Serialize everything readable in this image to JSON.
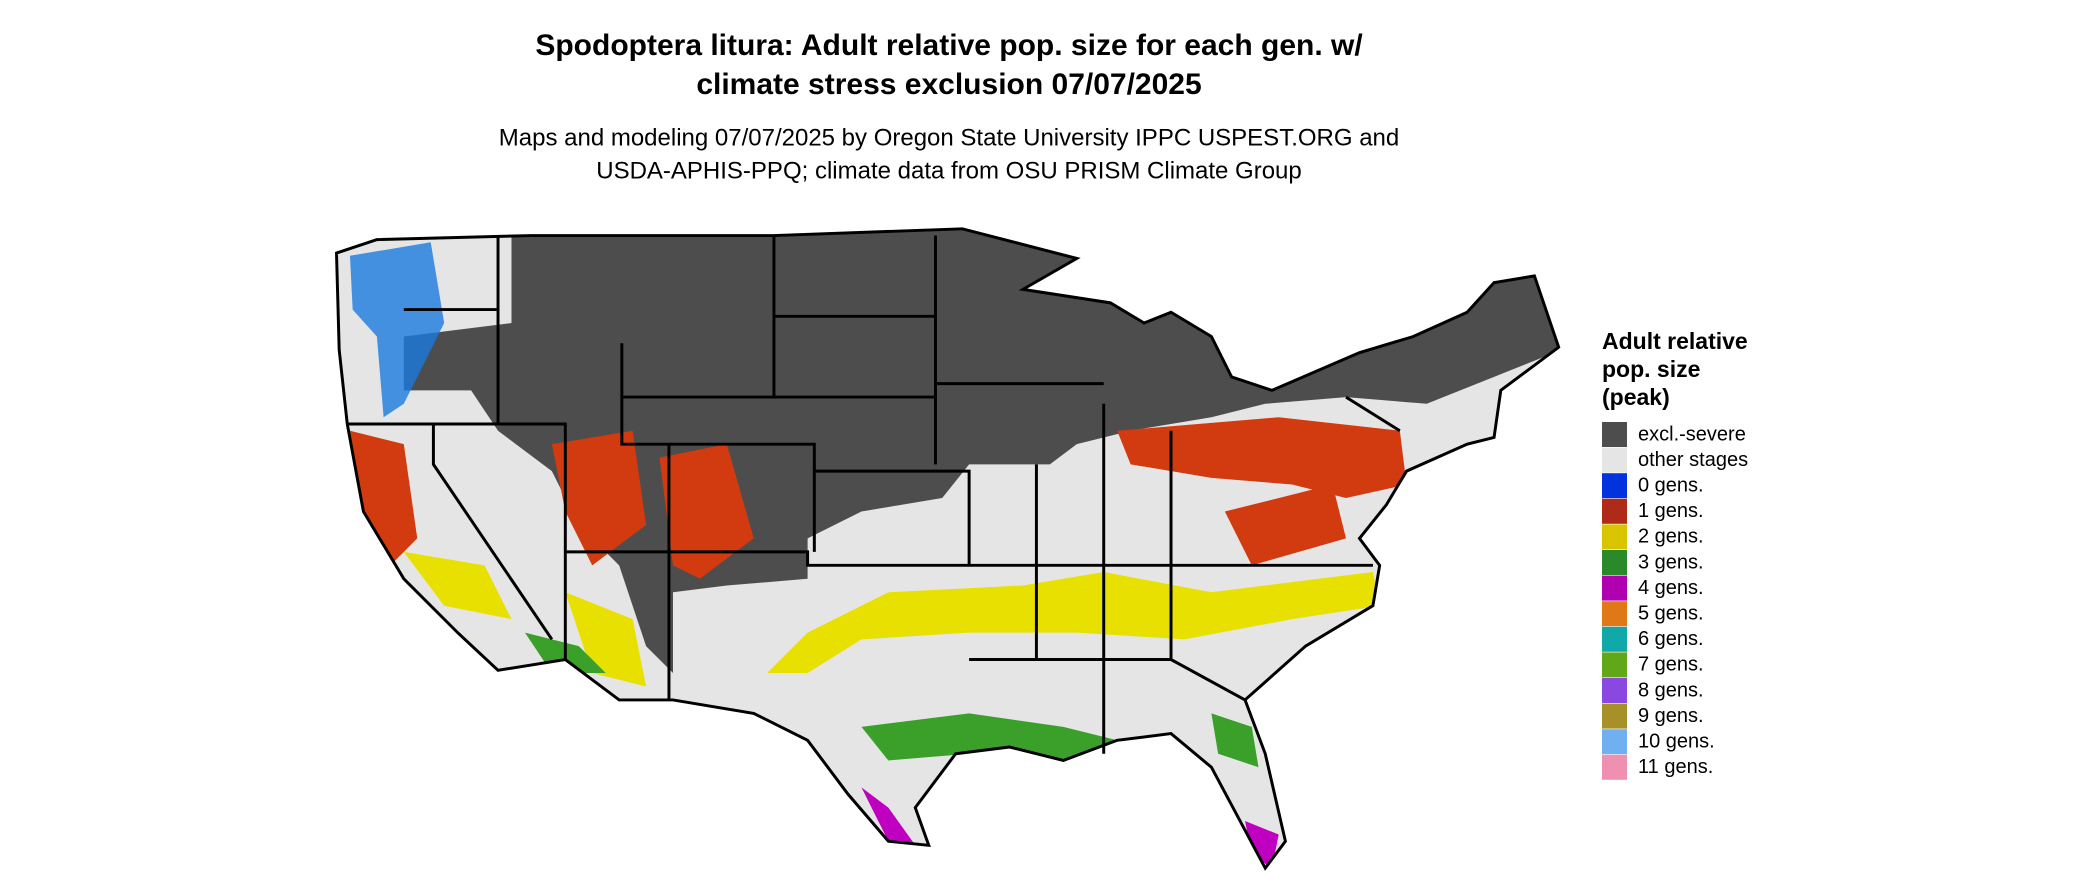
{
  "title": [
    "Spodoptera litura: Adult relative pop. size for each gen. w/",
    "climate stress exclusion 07/07/2025"
  ],
  "subtitle": [
    "Maps and modeling 07/07/2025 by Oregon State University IPPC USPEST.ORG and",
    "USDA-APHIS-PPQ; climate data from OSU PRISM Climate Group"
  ],
  "legend": {
    "title": [
      "Adult relative",
      "pop. size",
      "(peak)"
    ],
    "items": [
      {
        "label": "excl.-severe",
        "color": "#4d4d4d"
      },
      {
        "label": "other stages",
        "color": "#e5e5e5"
      },
      {
        "label": "0 gens.",
        "color": "#0033dd"
      },
      {
        "label": "1 gens.",
        "color": "#b02a18"
      },
      {
        "label": "2 gens.",
        "color": "#d9c400"
      },
      {
        "label": "3 gens.",
        "color": "#2a8a2a"
      },
      {
        "label": "4 gens.",
        "color": "#b000b0"
      },
      {
        "label": "5 gens.",
        "color": "#e07818"
      },
      {
        "label": "6 gens.",
        "color": "#10a8a8"
      },
      {
        "label": "7 gens.",
        "color": "#60a818"
      },
      {
        "label": "8 gens.",
        "color": "#8a48e0"
      },
      {
        "label": "9 gens.",
        "color": "#a89028"
      },
      {
        "label": "10 gens.",
        "color": "#70b0f0"
      },
      {
        "label": "11 gens.",
        "color": "#f090b0"
      }
    ]
  }
}
